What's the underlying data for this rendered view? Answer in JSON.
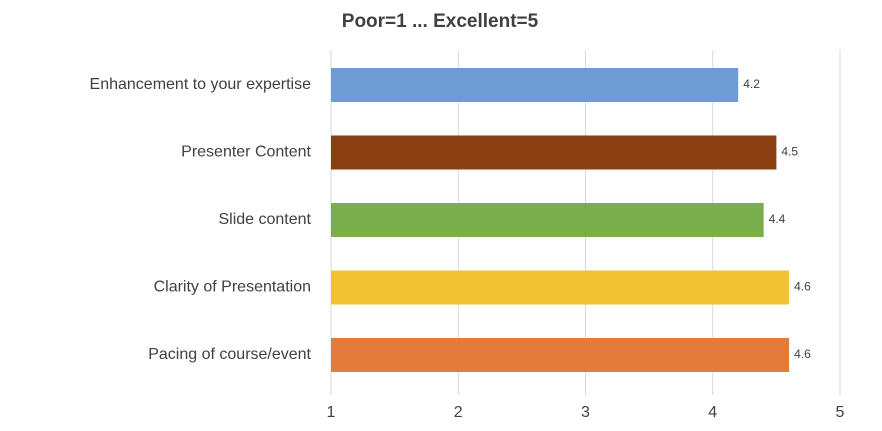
{
  "chart_data": {
    "type": "hbar",
    "title": "Poor=1 ... Excellent=5",
    "categories": [
      "Enhancement to your expertise",
      "Presenter Content",
      "Slide content",
      "Clarity of Presentation",
      "Pacing of course/event"
    ],
    "values": [
      4.2,
      4.5,
      4.4,
      4.6,
      4.6
    ],
    "colors": [
      "#6f9bd4",
      "#8c3f12",
      "#79ae4b",
      "#f0c232",
      "#e27b3b"
    ],
    "xlim": [
      1,
      5
    ],
    "xticks": [
      1,
      2,
      3,
      4,
      5
    ],
    "grid": true
  }
}
